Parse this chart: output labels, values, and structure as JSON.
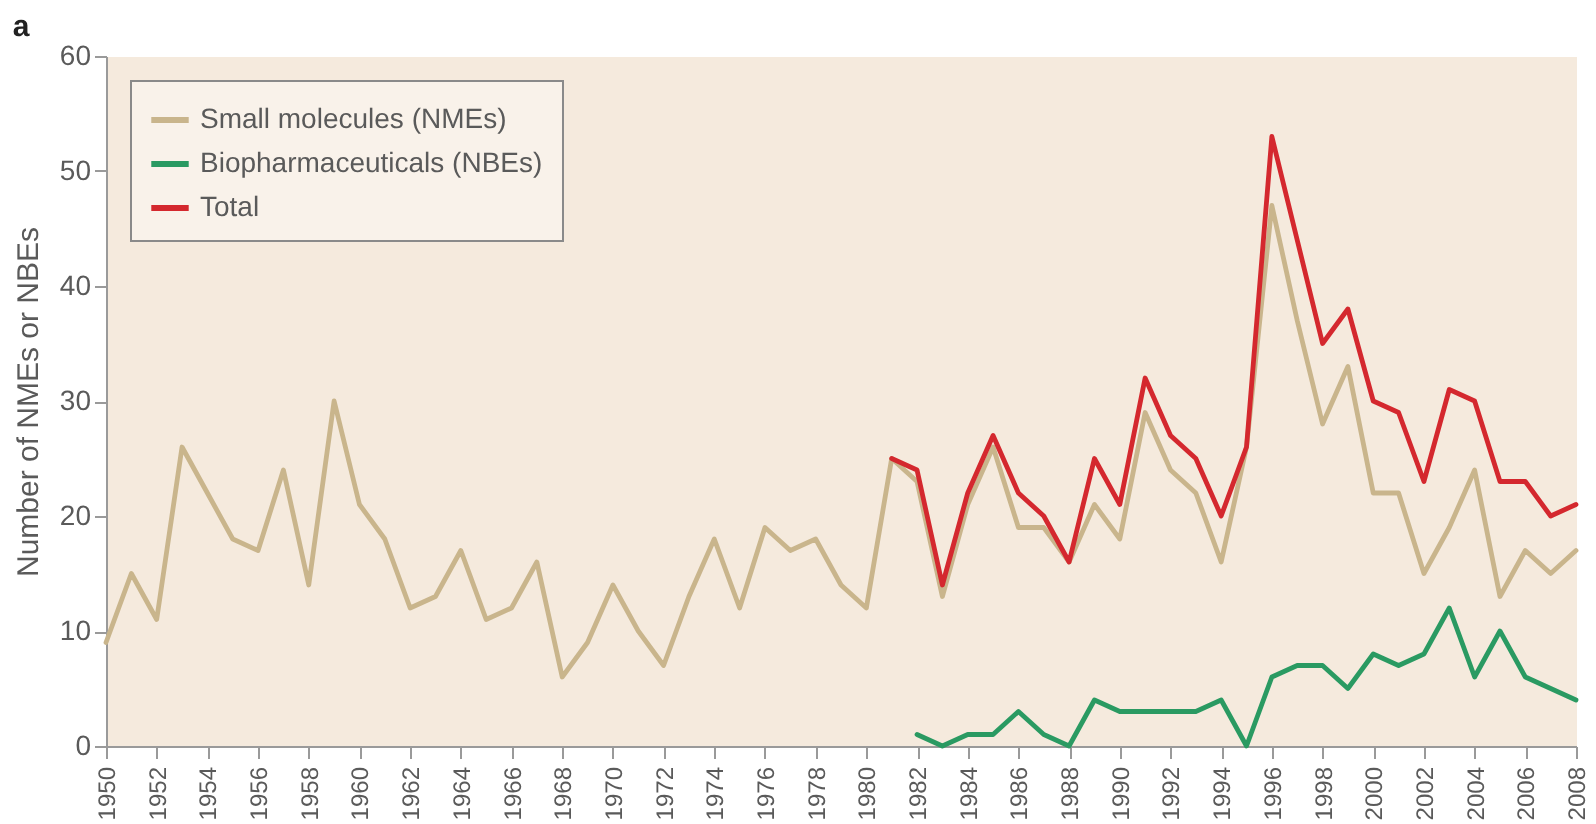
{
  "chart_data": {
    "type": "line",
    "title": "a",
    "ylabel": "Number of NMEs or NBEs",
    "x": [
      1950,
      1951,
      1952,
      1953,
      1954,
      1955,
      1956,
      1957,
      1958,
      1959,
      1960,
      1961,
      1962,
      1963,
      1964,
      1965,
      1966,
      1967,
      1968,
      1969,
      1970,
      1971,
      1972,
      1973,
      1974,
      1975,
      1976,
      1977,
      1978,
      1979,
      1980,
      1981,
      1982,
      1983,
      1984,
      1985,
      1986,
      1987,
      1988,
      1989,
      1990,
      1991,
      1992,
      1993,
      1994,
      1995,
      1996,
      1997,
      1998,
      1999,
      2000,
      2001,
      2002,
      2003,
      2004,
      2005,
      2006,
      2007,
      2008
    ],
    "xlim": [
      1950,
      2008
    ],
    "xticks": [
      1950,
      1952,
      1954,
      1956,
      1958,
      1960,
      1962,
      1964,
      1966,
      1968,
      1970,
      1972,
      1974,
      1976,
      1978,
      1980,
      1982,
      1984,
      1986,
      1988,
      1990,
      1992,
      1994,
      1996,
      1998,
      2000,
      2002,
      2004,
      2006,
      2008
    ],
    "ylim": [
      0,
      60
    ],
    "yticks": [
      0,
      10,
      20,
      30,
      40,
      50,
      60
    ],
    "series": [
      {
        "name": "Small molecules (NMEs)",
        "color": "#c9b58c",
        "values": [
          9,
          15,
          11,
          26,
          22,
          18,
          17,
          24,
          14,
          30,
          21,
          18,
          12,
          13,
          17,
          11,
          12,
          16,
          6,
          9,
          14,
          10,
          7,
          13,
          18,
          12,
          19,
          17,
          18,
          14,
          12,
          25,
          23,
          13,
          21,
          26,
          19,
          19,
          16,
          21,
          18,
          29,
          24,
          22,
          16,
          26,
          47,
          37,
          28,
          33,
          22,
          22,
          15,
          19,
          24,
          13,
          17,
          15,
          17
        ]
      },
      {
        "name": "Biopharmaceuticals (NBEs)",
        "color": "#2a9a62",
        "values": [
          null,
          null,
          null,
          null,
          null,
          null,
          null,
          null,
          null,
          null,
          null,
          null,
          null,
          null,
          null,
          null,
          null,
          null,
          null,
          null,
          null,
          null,
          null,
          null,
          null,
          null,
          null,
          null,
          null,
          null,
          null,
          null,
          1,
          0,
          1,
          1,
          3,
          1,
          0,
          4,
          3,
          3,
          3,
          3,
          4,
          0,
          6,
          7,
          7,
          5,
          8,
          7,
          8,
          12,
          6,
          10,
          6,
          5,
          4
        ]
      },
      {
        "name": "Total",
        "color": "#d4282e",
        "values": [
          null,
          null,
          null,
          null,
          null,
          null,
          null,
          null,
          null,
          null,
          null,
          null,
          null,
          null,
          null,
          null,
          null,
          null,
          null,
          null,
          null,
          null,
          null,
          null,
          null,
          null,
          null,
          null,
          null,
          null,
          null,
          25,
          24,
          14,
          22,
          27,
          22,
          20,
          16,
          25,
          21,
          32,
          27,
          25,
          20,
          26,
          53,
          44,
          35,
          38,
          30,
          29,
          23,
          31,
          30,
          23,
          23,
          20,
          21
        ]
      }
    ],
    "legend": "top left",
    "grid": false,
    "marker": "none",
    "line_style": "solid"
  }
}
